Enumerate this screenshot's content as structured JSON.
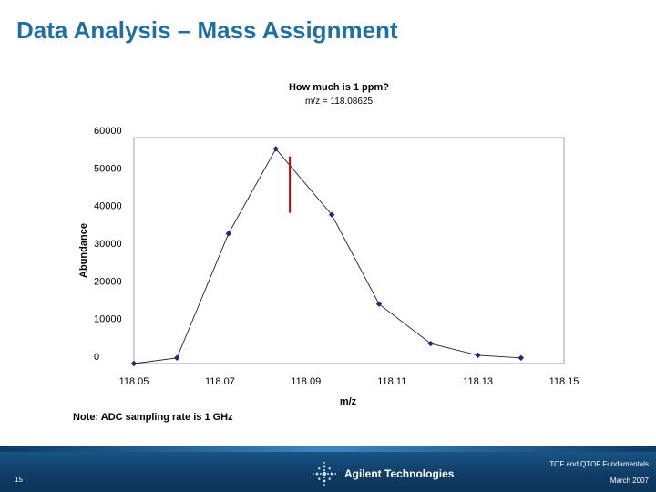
{
  "slide": {
    "title": "Data Analysis – Mass Assignment",
    "note": "Note:  ADC sampling rate is 1 GHz"
  },
  "footer": {
    "page_number": "15",
    "course": "TOF and QTOF Fundamentals",
    "date": "March 2007",
    "logo_text": "Agilent Technologies"
  },
  "chart_data": {
    "type": "line",
    "title": "How much is 1 ppm?",
    "subtitle": "m/z = 118.08625",
    "xlabel": "m/z",
    "ylabel": "Abundance",
    "xlim": [
      118.05,
      118.15
    ],
    "ylim": [
      0,
      60000
    ],
    "x_ticks": [
      "118.05",
      "118.07",
      "118.09",
      "118.11",
      "118.13",
      "118.15"
    ],
    "y_ticks": [
      "0",
      "10000",
      "20000",
      "30000",
      "40000",
      "50000",
      "60000"
    ],
    "grid": false,
    "series": [
      {
        "x": [
          118.05,
          118.06,
          118.072,
          118.083,
          118.096,
          118.107,
          118.119,
          118.13,
          118.14
        ],
        "y": [
          0,
          1500,
          34500,
          57000,
          39500,
          15800,
          5300,
          2200,
          1500
        ],
        "color": "#1a2a7a",
        "marker": "diamond"
      }
    ],
    "annotation": {
      "x": 118.08625,
      "y_top": 55000,
      "y_bottom": 40000,
      "color": "#cc0000"
    }
  }
}
